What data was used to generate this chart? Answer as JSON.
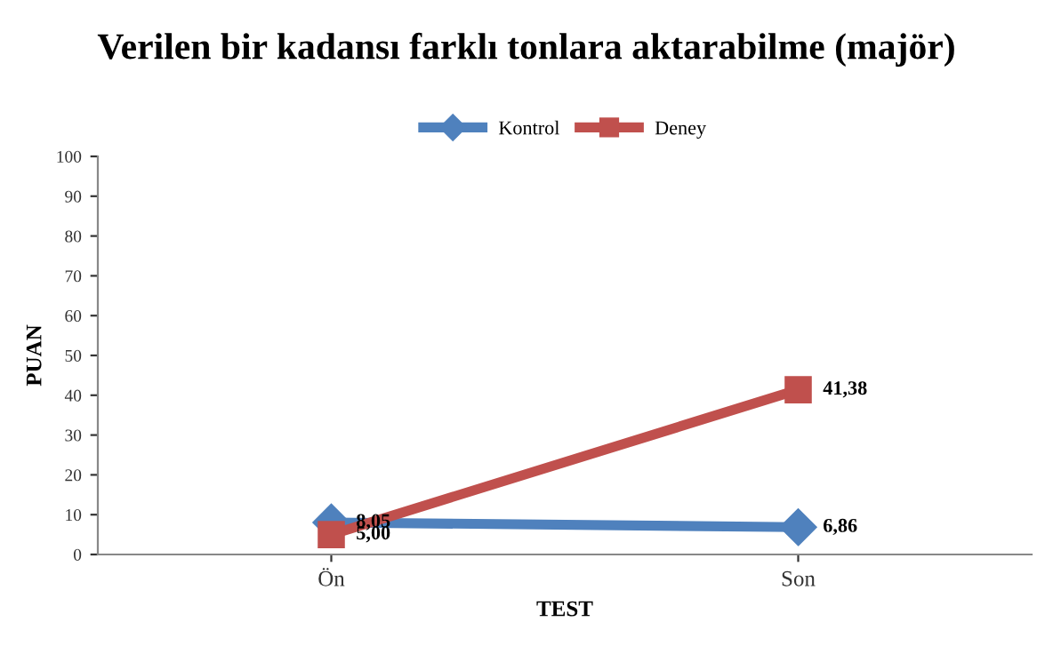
{
  "chart_data": {
    "type": "line",
    "title": "Verilen bir kadansı farklı tonlara aktarabilme (majör)",
    "xlabel": "TEST",
    "ylabel": "PUAN",
    "categories": [
      "Ön",
      "Son"
    ],
    "series": [
      {
        "name": "Kontrol",
        "color": "#4f81bd",
        "values": [
          8.05,
          6.86
        ],
        "value_labels": [
          "8,05",
          "6,86"
        ],
        "marker": "diamond"
      },
      {
        "name": "Deney",
        "color": "#c0504d",
        "values": [
          5.0,
          41.38
        ],
        "value_labels": [
          "5,00",
          "41,38"
        ],
        "marker": "square"
      }
    ],
    "ylim": [
      0,
      100
    ],
    "yticks": [
      0,
      10,
      20,
      30,
      40,
      50,
      60,
      70,
      80,
      90,
      100
    ],
    "grid": false,
    "legend": "top"
  }
}
